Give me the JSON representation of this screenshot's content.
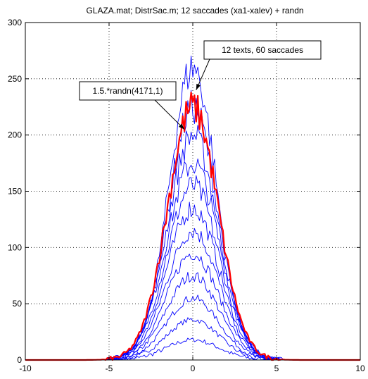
{
  "chart_data": {
    "type": "line",
    "title": "GLAZA.mat; DistrSac.m; 12 saccades (xa1-xalev) + randn",
    "xlabel": "",
    "ylabel": "",
    "xlim": [
      -10,
      10
    ],
    "ylim": [
      0,
      300
    ],
    "xticks": [
      "-10",
      "-5",
      "0",
      "5",
      "10"
    ],
    "yticks": [
      "0",
      "50",
      "100",
      "150",
      "200",
      "250",
      "300"
    ],
    "grid": true,
    "colors": {
      "blue": "#0000ff",
      "red": "#ff0000",
      "axes": "#000000",
      "grid": "#000000"
    },
    "annotations": [
      {
        "text": "12 texts, 60 saccades",
        "target": [
          0.2,
          240
        ]
      },
      {
        "text": "1.5.*randn(4171,1)",
        "target": [
          -0.5,
          205
        ]
      }
    ],
    "series": [
      {
        "color": "#0000ff",
        "sigma": 1.55,
        "peak": 18
      },
      {
        "color": "#0000ff",
        "sigma": 1.55,
        "peak": 36
      },
      {
        "color": "#0000ff",
        "sigma": 1.55,
        "peak": 55
      },
      {
        "color": "#0000ff",
        "sigma": 1.55,
        "peak": 75
      },
      {
        "color": "#0000ff",
        "sigma": 1.55,
        "peak": 95
      },
      {
        "color": "#0000ff",
        "sigma": 1.55,
        "peak": 115
      },
      {
        "color": "#0000ff",
        "sigma": 1.55,
        "peak": 135
      },
      {
        "color": "#0000ff",
        "sigma": 1.55,
        "peak": 155
      },
      {
        "color": "#0000ff",
        "sigma": 1.55,
        "peak": 175
      },
      {
        "color": "#0000ff",
        "sigma": 1.5,
        "peak": 200
      },
      {
        "color": "#0000ff",
        "sigma": 1.45,
        "peak": 225
      },
      {
        "color": "#0000ff",
        "sigma": 1.4,
        "peak": 260
      },
      {
        "color": "#ff0000",
        "sigma": 1.5,
        "peak": 225
      }
    ]
  }
}
